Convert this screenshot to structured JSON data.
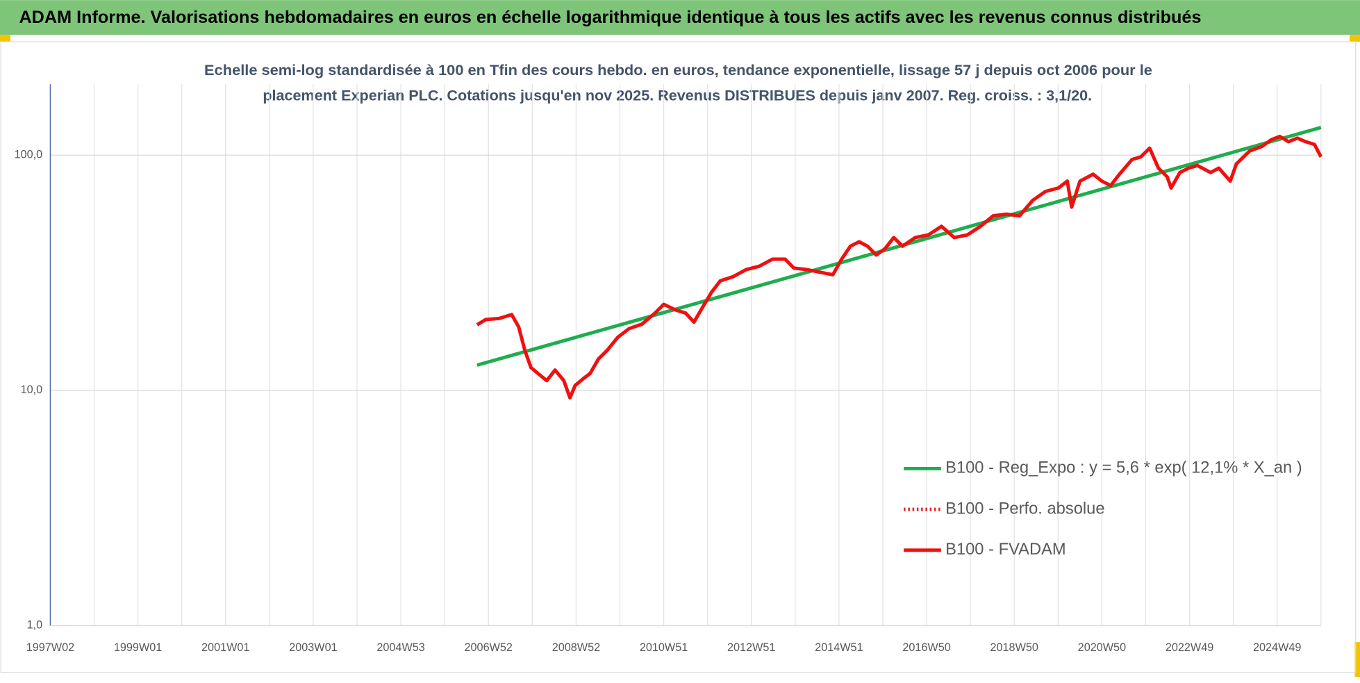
{
  "chart_data": {
    "type": "line",
    "title": "ADAM Informe. Valorisations hebdomadaires en euros en échelle logarithmique identique à tous les actifs avec les revenus connus distribués",
    "subtitle": [
      "Echelle semi-log standardisée à 100 en Tfin des cours hebdo. en euros, tendance exponentielle, lissage 57 j depuis oct 2006 pour le",
      "placement Experian PLC. Cotations jusqu'en nov 2025. Revenus DISTRIBUES depuis janv 2007. Reg. croiss. : 3,1/20."
    ],
    "log_scale": true,
    "grid": true,
    "legend_position": "right",
    "xlim": [
      1997,
      2026
    ],
    "xticks": [
      {
        "value": 1997,
        "label": "1997W02"
      },
      {
        "value": 1999,
        "label": "1999W01"
      },
      {
        "value": 2001,
        "label": "2001W01"
      },
      {
        "value": 2003,
        "label": "2003W01"
      },
      {
        "value": 2005,
        "label": "2004W53"
      },
      {
        "value": 2007,
        "label": "2006W52"
      },
      {
        "value": 2009,
        "label": "2008W52"
      },
      {
        "value": 2011,
        "label": "2010W51"
      },
      {
        "value": 2013,
        "label": "2012W51"
      },
      {
        "value": 2015,
        "label": "2014W51"
      },
      {
        "value": 2017,
        "label": "2016W50"
      },
      {
        "value": 2019,
        "label": "2018W50"
      },
      {
        "value": 2021,
        "label": "2020W50"
      },
      {
        "value": 2023,
        "label": "2022W49"
      },
      {
        "value": 2025,
        "label": "2024W49"
      }
    ],
    "xgrid_minor": [
      1998,
      2000,
      2002,
      2004,
      2006,
      2008,
      2010,
      2012,
      2014,
      2016,
      2018,
      2020,
      2022,
      2024,
      2026
    ],
    "ylim": [
      1,
      200
    ],
    "yticks": [
      {
        "value": 1,
        "label": "1,0"
      },
      {
        "value": 10,
        "label": "10,0"
      },
      {
        "value": 100,
        "label": "100,0"
      }
    ],
    "series": [
      {
        "name": "B100 - Reg_Expo : y = 5,6 * exp( 12,1% *  X_an )",
        "color": "#1fad4f",
        "dash": false,
        "x": [
          2006.74,
          2026.0
        ],
        "values": [
          12.8,
          131
        ]
      },
      {
        "name": "B100 - Perfo. absolue",
        "color": "#e8231e",
        "dash": true
      },
      {
        "name": "B100 - FVADAM",
        "color": "#ee1111",
        "dash": false,
        "x": [
          2006.74,
          2006.94,
          2007.24,
          2007.53,
          2007.69,
          2007.83,
          2007.97,
          2008.13,
          2008.33,
          2008.52,
          2008.72,
          2008.86,
          2008.98,
          2009.16,
          2009.32,
          2009.51,
          2009.71,
          2009.95,
          2010.21,
          2010.5,
          2010.8,
          2011.0,
          2011.26,
          2011.5,
          2011.69,
          2011.89,
          2012.09,
          2012.29,
          2012.58,
          2012.88,
          2013.18,
          2013.48,
          2013.77,
          2013.97,
          2014.27,
          2014.56,
          2014.86,
          2015.06,
          2015.26,
          2015.46,
          2015.65,
          2015.85,
          2016.05,
          2016.25,
          2016.45,
          2016.74,
          2017.04,
          2017.34,
          2017.63,
          2017.93,
          2018.23,
          2018.52,
          2018.82,
          2019.12,
          2019.42,
          2019.71,
          2020.01,
          2020.21,
          2020.31,
          2020.5,
          2020.8,
          2021.0,
          2021.2,
          2021.4,
          2021.69,
          2021.89,
          2022.09,
          2022.29,
          2022.49,
          2022.58,
          2022.78,
          2022.98,
          2023.18,
          2023.48,
          2023.67,
          2023.93,
          2024.07,
          2024.37,
          2024.66,
          2024.86,
          2025.06,
          2025.26,
          2025.46,
          2025.65,
          2025.85,
          2026.0
        ],
        "values": [
          19.0,
          20.0,
          20.2,
          21.0,
          18.6,
          14.8,
          12.5,
          11.8,
          11.0,
          12.2,
          11.0,
          9.3,
          10.5,
          11.2,
          11.8,
          13.6,
          14.8,
          16.8,
          18.3,
          19.1,
          21.3,
          23.2,
          22.0,
          21.3,
          19.5,
          22.6,
          26.1,
          29.2,
          30.4,
          32.6,
          33.7,
          36.1,
          36.1,
          33.1,
          32.6,
          31.8,
          31.0,
          36.1,
          41.0,
          42.8,
          41.0,
          37.6,
          40.0,
          44.6,
          41.0,
          44.6,
          45.8,
          49.8,
          44.6,
          45.8,
          49.8,
          55.2,
          56.1,
          55.2,
          64.2,
          70.0,
          72.5,
          77.5,
          60.1,
          77.5,
          82.9,
          77.5,
          74.2,
          82.9,
          95.8,
          98.3,
          107,
          88.0,
          80.9,
          72.5,
          84.3,
          88.0,
          90.3,
          84.3,
          88.0,
          77.5,
          91.8,
          104,
          109,
          116,
          120,
          114,
          118,
          114,
          111,
          98.3
        ]
      }
    ]
  }
}
